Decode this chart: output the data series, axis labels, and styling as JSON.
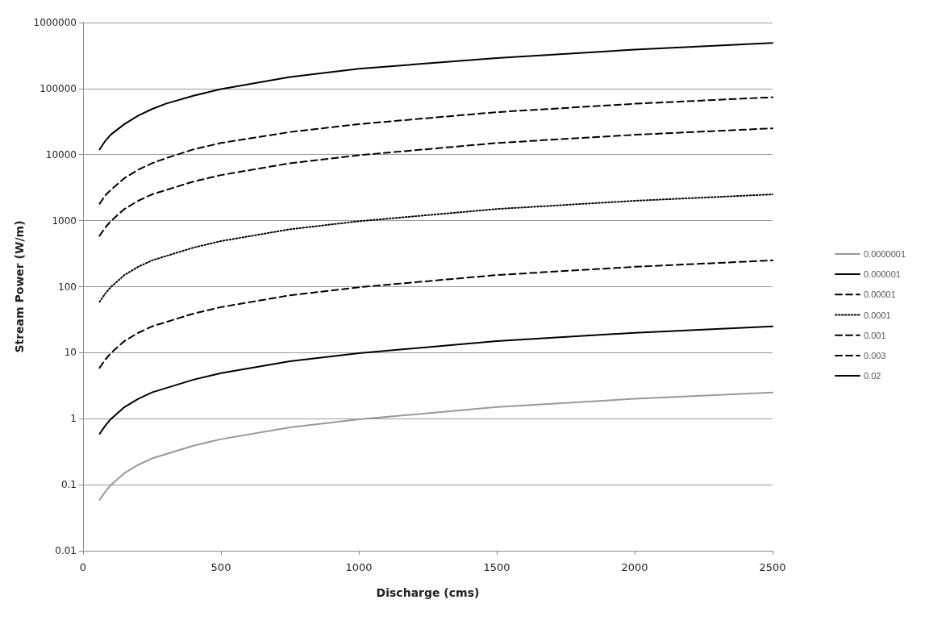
{
  "chart_data": {
    "type": "line",
    "xlabel": "Discharge (cms)",
    "ylabel": "Stream Power (W/m)",
    "x": [
      60,
      80,
      100,
      150,
      200,
      250,
      300,
      400,
      500,
      750,
      1000,
      1500,
      2000,
      2500
    ],
    "series": [
      {
        "name": "0.0000001",
        "color": "#999999",
        "line_style": "solid",
        "values": [
          0.059,
          0.078,
          0.098,
          0.15,
          0.2,
          0.25,
          0.29,
          0.39,
          0.49,
          0.74,
          0.98,
          1.5,
          2.0,
          2.5
        ]
      },
      {
        "name": "0.000001",
        "color": "#000000",
        "line_style": "solid",
        "values": [
          0.59,
          0.78,
          0.98,
          1.5,
          2.0,
          2.5,
          2.9,
          3.9,
          4.9,
          7.4,
          9.8,
          15,
          20,
          25
        ]
      },
      {
        "name": "0.00001",
        "color": "#000000",
        "line_style": "dashed",
        "values": [
          5.9,
          7.8,
          9.8,
          15,
          20,
          25,
          29,
          39,
          49,
          74,
          98,
          150,
          200,
          250
        ]
      },
      {
        "name": "0.0001",
        "color": "#000000",
        "line_style": "dotted",
        "values": [
          59,
          78,
          98,
          150,
          200,
          250,
          290,
          390,
          490,
          740,
          980,
          1500,
          2000,
          2500
        ]
      },
      {
        "name": "0.001",
        "color": "#000000",
        "line_style": "dashed",
        "values": [
          590,
          780,
          980,
          1500,
          2000,
          2500,
          2900,
          3900,
          4900,
          7400,
          9800,
          15000,
          20000,
          25000
        ]
      },
      {
        "name": "0.003",
        "color": "#000000",
        "line_style": "dashed",
        "values": [
          1800,
          2400,
          2900,
          4400,
          5900,
          7400,
          8800,
          12000,
          15000,
          22000,
          29000,
          44000,
          59000,
          74000
        ]
      },
      {
        "name": "0.02",
        "color": "#000000",
        "line_style": "solid",
        "values": [
          12000,
          16000,
          20000,
          29000,
          39000,
          49000,
          59000,
          78000,
          98000,
          150000,
          200000,
          290000,
          390000,
          490000
        ]
      }
    ],
    "log": "y",
    "xlim": [
      0,
      2500
    ],
    "xticks": [
      0,
      500,
      1000,
      1500,
      2000,
      2500
    ],
    "ylim": [
      0.01,
      1000000
    ],
    "yticks": [
      0.01,
      0.1,
      1,
      10,
      100,
      1000,
      10000,
      100000,
      1000000
    ],
    "grid": "y",
    "legend": "right",
    "marker": "none"
  }
}
